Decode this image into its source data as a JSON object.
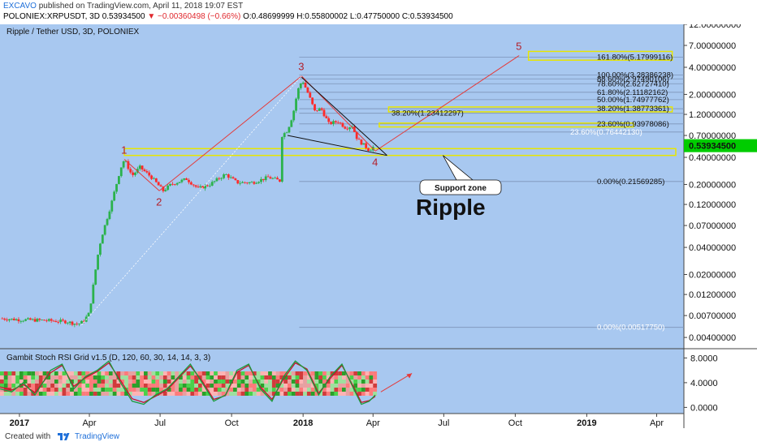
{
  "header": {
    "author": "EXCAVO",
    "published": "published on TradingView.com, April 11, 2018 19:07 EST",
    "symbol": "POLONIEX:XRPUSDT, 3D",
    "last": "0.53934500",
    "change": "−0.00360498 (−0.66%)",
    "ohlc": "O:0.48699999  H:0.55800002  L:0.47750000  C:0.53934500"
  },
  "footer": {
    "created_label": "Created with",
    "brand": "TradingView"
  },
  "colors": {
    "background": "#a8c8f0",
    "candle_up": "#2bb24c",
    "candle_down": "#ff2a2a",
    "wave_line": "#e43b3b",
    "zone": "#e8e600",
    "last_price_bg": "#00cc00"
  },
  "chart_data": {
    "type": "candlestick",
    "title": "Ripple / Tether USD, 3D, POLONIEX",
    "watermark": "Ripple",
    "scale": "log",
    "ylim": [
      0.003,
      12
    ],
    "price_ticks": [
      "12.00000000",
      "7.00000000",
      "4.00000000",
      "2.00000000",
      "1.20000000",
      "0.70000000",
      "0.40000000",
      "0.20000000",
      "0.12000000",
      "0.07000000",
      "0.04000000",
      "0.02000000",
      "0.01200000",
      "0.00700000",
      "0.00400000"
    ],
    "price_tick_values": [
      12,
      7,
      4,
      2,
      1.2,
      0.7,
      0.4,
      0.2,
      0.12,
      0.07,
      0.04,
      0.02,
      0.012,
      0.007,
      0.004
    ],
    "last_price": {
      "label": "0.53934500",
      "value": 0.539345
    },
    "time_labels": [
      "2017",
      "Apr",
      "Jul",
      "Oct",
      "2018",
      "Apr",
      "Jul",
      "Oct",
      "2019",
      "Apr"
    ],
    "time_label_days": [
      0,
      90,
      181,
      273,
      365,
      455,
      546,
      638,
      730,
      820
    ],
    "price_path": [
      [
        -25,
        0.0065
      ],
      [
        0,
        0.0063
      ],
      [
        30,
        0.0062
      ],
      [
        60,
        0.006
      ],
      [
        75,
        0.0056
      ],
      [
        82,
        0.006
      ],
      [
        90,
        0.0075
      ],
      [
        100,
        0.03
      ],
      [
        105,
        0.05
      ],
      [
        118,
        0.12
      ],
      [
        130,
        0.3
      ],
      [
        135,
        0.38
      ],
      [
        145,
        0.25
      ],
      [
        155,
        0.31
      ],
      [
        170,
        0.24
      ],
      [
        185,
        0.17
      ],
      [
        195,
        0.2
      ],
      [
        215,
        0.23
      ],
      [
        230,
        0.18
      ],
      [
        245,
        0.2
      ],
      [
        265,
        0.26
      ],
      [
        280,
        0.21
      ],
      [
        300,
        0.21
      ],
      [
        320,
        0.24
      ],
      [
        335,
        0.22
      ],
      [
        338,
        0.7
      ],
      [
        345,
        0.8
      ],
      [
        352,
        1.2
      ],
      [
        358,
        2.2
      ],
      [
        364,
        2.9
      ],
      [
        367,
        2.5
      ],
      [
        372,
        2.0
      ],
      [
        380,
        1.3
      ],
      [
        388,
        1.4
      ],
      [
        398,
        0.95
      ],
      [
        410,
        1.0
      ],
      [
        420,
        0.85
      ],
      [
        428,
        0.9
      ],
      [
        435,
        0.63
      ],
      [
        442,
        0.56
      ],
      [
        450,
        0.48
      ],
      [
        456,
        0.53
      ]
    ],
    "waves": [
      {
        "label": "1",
        "day": 135,
        "value": 0.38
      },
      {
        "label": "2",
        "day": 180,
        "value": 0.17
      },
      {
        "label": "3",
        "day": 363,
        "value": 3.2
      },
      {
        "label": "4",
        "day": 458,
        "value": 0.47
      },
      {
        "label": "5",
        "day": 643,
        "value": 5.4
      }
    ],
    "fib_levels": [
      {
        "label": "161.80%(5.17999116)",
        "value": 5.17999116
      },
      {
        "label": "100.00%(3.28386238)",
        "value": 3.28386238
      },
      {
        "label": "88.60%(2.97490106)",
        "value": 2.97490106
      },
      {
        "label": "78.60%(2.62727410)",
        "value": 2.6272741
      },
      {
        "label": "61.80%(2.11182162)",
        "value": 2.11182162
      },
      {
        "label": "50.00%(1.74977762)",
        "value": 1.74977762
      },
      {
        "label": "38.20%(1.38773361)",
        "value": 1.38773361
      },
      {
        "label": "38.20%(1.23412297)",
        "value": 1.23412297
      },
      {
        "label": "23.60%(0.93978086)",
        "value": 0.93978086
      },
      {
        "label": "23.60%(0.76442130)",
        "value": 0.7644213
      },
      {
        "label": "0.00%(0.21569285)",
        "value": 0.21569285
      },
      {
        "label": "0.00%(0.00517750)",
        "value": 0.0051775
      }
    ],
    "zones": [
      {
        "name": "support",
        "low": 0.42,
        "high": 0.5,
        "day_start": 135,
        "day_end": 999
      },
      {
        "name": "target-161",
        "low": 4.8,
        "high": 6.0,
        "day_start": 655,
        "day_end": 840
      },
      {
        "name": "fib-38",
        "low": 1.28,
        "high": 1.45,
        "day_start": 475,
        "day_end": 840
      },
      {
        "name": "fib-23",
        "low": 0.87,
        "high": 0.96,
        "day_start": 463,
        "day_end": 790
      }
    ],
    "annotation": "Support zone",
    "indicator": {
      "title": "Gambit Stoch RSI Grid v1.5 (D, 120, 60, 30, 14, 14, 3, 3)",
      "ticks": [
        "8.0000",
        "4.0000",
        "0.0000"
      ],
      "tick_values": [
        8,
        4,
        0
      ],
      "ylim": [
        -1,
        9.5
      ],
      "k_line": [
        [
          -25,
          3
        ],
        [
          -10,
          2.5
        ],
        [
          5,
          4
        ],
        [
          20,
          2
        ],
        [
          40,
          6
        ],
        [
          55,
          7
        ],
        [
          70,
          3
        ],
        [
          85,
          5
        ],
        [
          100,
          6
        ],
        [
          115,
          7.5
        ],
        [
          130,
          4
        ],
        [
          145,
          1
        ],
        [
          160,
          0.5
        ],
        [
          175,
          2
        ],
        [
          190,
          3
        ],
        [
          205,
          5
        ],
        [
          220,
          7
        ],
        [
          235,
          4
        ],
        [
          250,
          1
        ],
        [
          265,
          2
        ],
        [
          280,
          6
        ],
        [
          295,
          7
        ],
        [
          310,
          3
        ],
        [
          325,
          1
        ],
        [
          340,
          5
        ],
        [
          355,
          7.5
        ],
        [
          370,
          6
        ],
        [
          385,
          2
        ],
        [
          400,
          5
        ],
        [
          415,
          7
        ],
        [
          430,
          3
        ],
        [
          440,
          0.5
        ],
        [
          450,
          1
        ],
        [
          458,
          2
        ]
      ],
      "d_line": [
        [
          -25,
          3.3
        ],
        [
          -10,
          2.8
        ],
        [
          5,
          3.7
        ],
        [
          20,
          2.4
        ],
        [
          40,
          5.6
        ],
        [
          55,
          6.8
        ],
        [
          70,
          3.4
        ],
        [
          85,
          4.8
        ],
        [
          100,
          5.8
        ],
        [
          115,
          7.2
        ],
        [
          130,
          4.4
        ],
        [
          145,
          1.4
        ],
        [
          160,
          0.8
        ],
        [
          175,
          1.8
        ],
        [
          190,
          2.8
        ],
        [
          205,
          4.8
        ],
        [
          220,
          6.7
        ],
        [
          235,
          4.3
        ],
        [
          250,
          1.3
        ],
        [
          265,
          1.9
        ],
        [
          280,
          5.7
        ],
        [
          295,
          6.8
        ],
        [
          310,
          3.3
        ],
        [
          325,
          1.3
        ],
        [
          340,
          4.6
        ],
        [
          355,
          7.2
        ],
        [
          370,
          6.2
        ],
        [
          385,
          2.3
        ],
        [
          400,
          4.7
        ],
        [
          415,
          6.8
        ],
        [
          430,
          3.3
        ],
        [
          440,
          0.8
        ],
        [
          450,
          1.1
        ],
        [
          458,
          1.8
        ]
      ]
    }
  }
}
